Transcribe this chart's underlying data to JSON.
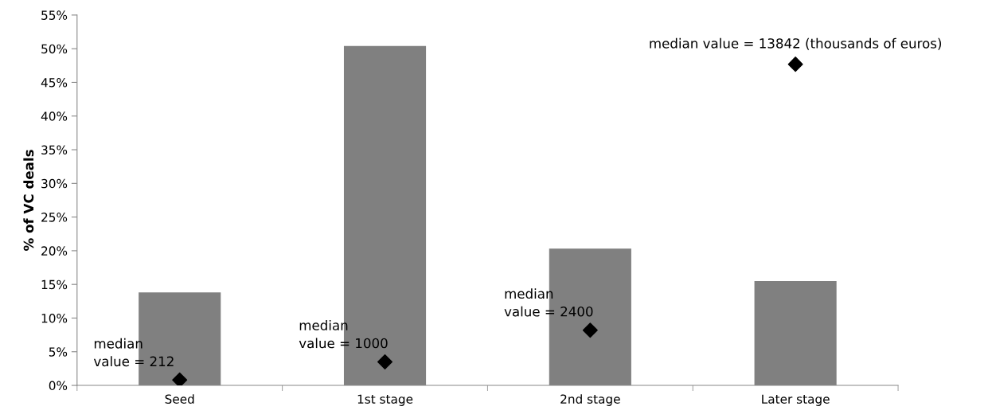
{
  "chart_data": {
    "type": "bar",
    "ylabel": "% of VC deals",
    "categories": [
      "Seed",
      "1st stage",
      "2nd stage",
      "Later stage"
    ],
    "series": [
      {
        "color": "#808080",
        "values": [
          13.8,
          50.4,
          20.3,
          15.5
        ]
      },
      {
        "type": "scatter",
        "color": "#000000",
        "marker": "diamond",
        "values": [
          0.8,
          3.5,
          8.2,
          47.7
        ]
      }
    ],
    "ylim": [
      0,
      55
    ],
    "yticks": [
      {
        "value": 0,
        "label": "0%"
      },
      {
        "value": 5,
        "label": "5%"
      },
      {
        "value": 10,
        "label": "10%"
      },
      {
        "value": 15,
        "label": "15%"
      },
      {
        "value": 20,
        "label": "20%"
      },
      {
        "value": 25,
        "label": "25%"
      },
      {
        "value": 30,
        "label": "30%"
      },
      {
        "value": 35,
        "label": "35%"
      },
      {
        "value": 40,
        "label": "40%"
      },
      {
        "value": 45,
        "label": "45%"
      },
      {
        "value": 50,
        "label": "50%"
      },
      {
        "value": 55,
        "label": "55%"
      }
    ],
    "annotations": [
      {
        "text": "median\nvalue = 212",
        "x": "Seed",
        "y": 0.8
      },
      {
        "text": "median\nvalue = 1000",
        "x": "1st stage",
        "y": 3.5
      },
      {
        "text": "median\nvalue = 2400",
        "x": "2nd stage",
        "y": 8.2
      },
      {
        "text": "median value = 13842 (thousands of euros)",
        "x": "Later stage",
        "y": 47.7
      }
    ],
    "grid": false,
    "legend": false
  }
}
